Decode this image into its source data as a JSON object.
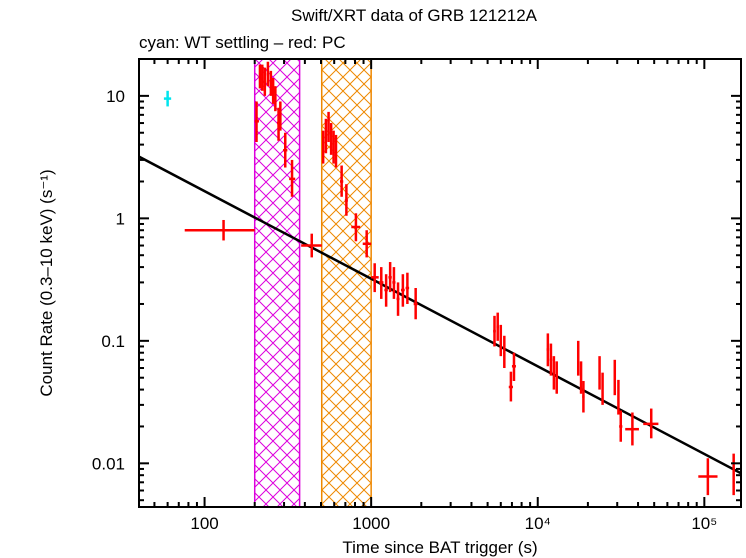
{
  "chart_data": {
    "type": "scatter",
    "title": "Swift/XRT data of GRB 121212A",
    "subtitle": "cyan: WT settling – red: PC",
    "xlabel": "Time since BAT trigger (s)",
    "ylabel": "Count Rate (0.3–10 keV) (s⁻¹)",
    "xscale": "log",
    "yscale": "log",
    "xlim": [
      40.4,
      166000
    ],
    "ylim": [
      0.0044,
      20
    ],
    "x_ticks": [
      {
        "value": 100,
        "label": "100"
      },
      {
        "value": 1000,
        "label": "1000"
      },
      {
        "value": 10000,
        "label": "10⁴"
      },
      {
        "value": 100000,
        "label": "10⁵"
      }
    ],
    "y_ticks": [
      {
        "value": 10,
        "label": "10"
      },
      {
        "value": 1,
        "label": "1"
      },
      {
        "value": 0.1,
        "label": "0.1"
      },
      {
        "value": 0.01,
        "label": "0.01"
      }
    ],
    "bands": [
      {
        "name": "magenta-hatched-interval",
        "x0": 200,
        "x1": 372,
        "color": "#dd00dd"
      },
      {
        "name": "orange-hatched-interval",
        "x0": 505,
        "x1": 1000,
        "color": "#ee8800"
      }
    ],
    "fit_line": {
      "name": "power-law-fit",
      "color": "#000000",
      "points": [
        [
          40.4,
          3.19
        ],
        [
          166000,
          0.0083
        ]
      ]
    },
    "series": [
      {
        "name": "WT settling",
        "color": "#00e5ee",
        "points": [
          {
            "x": 60,
            "y": 9.5,
            "xlo": 57,
            "xhi": 63,
            "ylo": 8.2,
            "yhi": 11
          }
        ]
      },
      {
        "name": "PC",
        "color": "#ff0000",
        "points": [
          {
            "x": 130,
            "y": 0.8,
            "xlo": 76,
            "xhi": 200,
            "ylo": 0.66,
            "yhi": 0.97
          },
          {
            "x": 205,
            "y": 6.2,
            "xlo": 200,
            "xhi": 212,
            "ylo": 4.2,
            "yhi": 9.0
          },
          {
            "x": 215,
            "y": 15,
            "xlo": 212,
            "xhi": 219,
            "ylo": 11.5,
            "yhi": 18
          },
          {
            "x": 222,
            "y": 14,
            "xlo": 219,
            "xhi": 226,
            "ylo": 11,
            "yhi": 18
          },
          {
            "x": 230,
            "y": 13,
            "xlo": 226,
            "xhi": 234,
            "ylo": 10,
            "yhi": 17
          },
          {
            "x": 240,
            "y": 15,
            "xlo": 236,
            "xhi": 244,
            "ylo": 12,
            "yhi": 19
          },
          {
            "x": 250,
            "y": 13,
            "xlo": 246,
            "xhi": 254,
            "ylo": 10,
            "yhi": 16
          },
          {
            "x": 258,
            "y": 11,
            "xlo": 254,
            "xhi": 262,
            "ylo": 8.6,
            "yhi": 14
          },
          {
            "x": 266,
            "y": 9.5,
            "xlo": 262,
            "xhi": 270,
            "ylo": 7.5,
            "yhi": 12
          },
          {
            "x": 278,
            "y": 6.0,
            "xlo": 272,
            "xhi": 284,
            "ylo": 4.3,
            "yhi": 8.0
          },
          {
            "x": 285,
            "y": 7.0,
            "xlo": 282,
            "xhi": 290,
            "ylo": 5.2,
            "yhi": 9.0
          },
          {
            "x": 305,
            "y": 3.6,
            "xlo": 296,
            "xhi": 314,
            "ylo": 2.6,
            "yhi": 5.0
          },
          {
            "x": 335,
            "y": 2.1,
            "xlo": 322,
            "xhi": 350,
            "ylo": 1.5,
            "yhi": 3.0
          },
          {
            "x": 440,
            "y": 0.6,
            "xlo": 380,
            "xhi": 505,
            "ylo": 0.48,
            "yhi": 0.75
          },
          {
            "x": 515,
            "y": 3.8,
            "xlo": 508,
            "xhi": 522,
            "ylo": 2.8,
            "yhi": 5.2
          },
          {
            "x": 535,
            "y": 4.6,
            "xlo": 528,
            "xhi": 542,
            "ylo": 3.4,
            "yhi": 6.5
          },
          {
            "x": 555,
            "y": 5.5,
            "xlo": 548,
            "xhi": 562,
            "ylo": 4.2,
            "yhi": 7.4
          },
          {
            "x": 575,
            "y": 4.4,
            "xlo": 568,
            "xhi": 582,
            "ylo": 3.3,
            "yhi": 6.0
          },
          {
            "x": 595,
            "y": 3.8,
            "xlo": 588,
            "xhi": 602,
            "ylo": 2.8,
            "yhi": 5.2
          },
          {
            "x": 615,
            "y": 3.5,
            "xlo": 608,
            "xhi": 622,
            "ylo": 2.6,
            "yhi": 4.8
          },
          {
            "x": 665,
            "y": 2.0,
            "xlo": 650,
            "xhi": 680,
            "ylo": 1.5,
            "yhi": 2.7
          },
          {
            "x": 710,
            "y": 1.4,
            "xlo": 695,
            "xhi": 725,
            "ylo": 1.05,
            "yhi": 1.9
          },
          {
            "x": 810,
            "y": 0.85,
            "xlo": 760,
            "xhi": 860,
            "ylo": 0.65,
            "yhi": 1.1
          },
          {
            "x": 940,
            "y": 0.62,
            "xlo": 890,
            "xhi": 1000,
            "ylo": 0.48,
            "yhi": 0.8
          },
          {
            "x": 1050,
            "y": 0.33,
            "xlo": 1000,
            "xhi": 1110,
            "ylo": 0.25,
            "yhi": 0.43
          },
          {
            "x": 1150,
            "y": 0.3,
            "xlo": 1115,
            "xhi": 1185,
            "ylo": 0.22,
            "yhi": 0.4
          },
          {
            "x": 1230,
            "y": 0.26,
            "xlo": 1200,
            "xhi": 1260,
            "ylo": 0.19,
            "yhi": 0.35
          },
          {
            "x": 1300,
            "y": 0.33,
            "xlo": 1270,
            "xhi": 1330,
            "ylo": 0.25,
            "yhi": 0.44
          },
          {
            "x": 1370,
            "y": 0.3,
            "xlo": 1340,
            "xhi": 1400,
            "ylo": 0.22,
            "yhi": 0.4
          },
          {
            "x": 1450,
            "y": 0.22,
            "xlo": 1420,
            "xhi": 1480,
            "ylo": 0.16,
            "yhi": 0.3
          },
          {
            "x": 1550,
            "y": 0.26,
            "xlo": 1510,
            "xhi": 1590,
            "ylo": 0.19,
            "yhi": 0.35
          },
          {
            "x": 1650,
            "y": 0.27,
            "xlo": 1610,
            "xhi": 1690,
            "ylo": 0.2,
            "yhi": 0.36
          },
          {
            "x": 1850,
            "y": 0.2,
            "xlo": 1800,
            "xhi": 1900,
            "ylo": 0.15,
            "yhi": 0.27
          },
          {
            "x": 5500,
            "y": 0.12,
            "xlo": 5400,
            "xhi": 5600,
            "ylo": 0.09,
            "yhi": 0.16
          },
          {
            "x": 5750,
            "y": 0.13,
            "xlo": 5650,
            "xhi": 5850,
            "ylo": 0.1,
            "yhi": 0.17
          },
          {
            "x": 6000,
            "y": 0.1,
            "xlo": 5900,
            "xhi": 6100,
            "ylo": 0.075,
            "yhi": 0.135
          },
          {
            "x": 6300,
            "y": 0.08,
            "xlo": 6200,
            "xhi": 6400,
            "ylo": 0.06,
            "yhi": 0.11
          },
          {
            "x": 6900,
            "y": 0.042,
            "xlo": 6700,
            "xhi": 7100,
            "ylo": 0.032,
            "yhi": 0.056
          },
          {
            "x": 7200,
            "y": 0.062,
            "xlo": 7000,
            "xhi": 7400,
            "ylo": 0.047,
            "yhi": 0.08
          },
          {
            "x": 11500,
            "y": 0.085,
            "xlo": 11300,
            "xhi": 11700,
            "ylo": 0.062,
            "yhi": 0.115
          },
          {
            "x": 12000,
            "y": 0.07,
            "xlo": 11800,
            "xhi": 12200,
            "ylo": 0.052,
            "yhi": 0.095
          },
          {
            "x": 12500,
            "y": 0.055,
            "xlo": 12300,
            "xhi": 12700,
            "ylo": 0.04,
            "yhi": 0.075
          },
          {
            "x": 13000,
            "y": 0.05,
            "xlo": 12800,
            "xhi": 13200,
            "ylo": 0.037,
            "yhi": 0.068
          },
          {
            "x": 17500,
            "y": 0.072,
            "xlo": 17300,
            "xhi": 17700,
            "ylo": 0.052,
            "yhi": 0.1
          },
          {
            "x": 18200,
            "y": 0.05,
            "xlo": 18000,
            "xhi": 18400,
            "ylo": 0.037,
            "yhi": 0.068
          },
          {
            "x": 18800,
            "y": 0.035,
            "xlo": 18500,
            "xhi": 19100,
            "ylo": 0.026,
            "yhi": 0.047
          },
          {
            "x": 23500,
            "y": 0.055,
            "xlo": 23200,
            "xhi": 23800,
            "ylo": 0.04,
            "yhi": 0.075
          },
          {
            "x": 24500,
            "y": 0.04,
            "xlo": 24200,
            "xhi": 24800,
            "ylo": 0.03,
            "yhi": 0.055
          },
          {
            "x": 29000,
            "y": 0.05,
            "xlo": 28700,
            "xhi": 29300,
            "ylo": 0.036,
            "yhi": 0.07
          },
          {
            "x": 30500,
            "y": 0.035,
            "xlo": 30200,
            "xhi": 30800,
            "ylo": 0.025,
            "yhi": 0.048
          },
          {
            "x": 31500,
            "y": 0.02,
            "xlo": 30800,
            "xhi": 32200,
            "ylo": 0.015,
            "yhi": 0.027
          },
          {
            "x": 37000,
            "y": 0.019,
            "xlo": 33500,
            "xhi": 40500,
            "ylo": 0.014,
            "yhi": 0.026
          },
          {
            "x": 48000,
            "y": 0.021,
            "xlo": 43000,
            "xhi": 53000,
            "ylo": 0.016,
            "yhi": 0.028
          },
          {
            "x": 105000,
            "y": 0.0078,
            "xlo": 92000,
            "xhi": 120000,
            "ylo": 0.0055,
            "yhi": 0.011
          },
          {
            "x": 150000,
            "y": 0.0082,
            "xlo": 148000,
            "xhi": 152000,
            "ylo": 0.0055,
            "yhi": 0.012
          }
        ]
      }
    ],
    "grid": false,
    "legend": "none"
  }
}
